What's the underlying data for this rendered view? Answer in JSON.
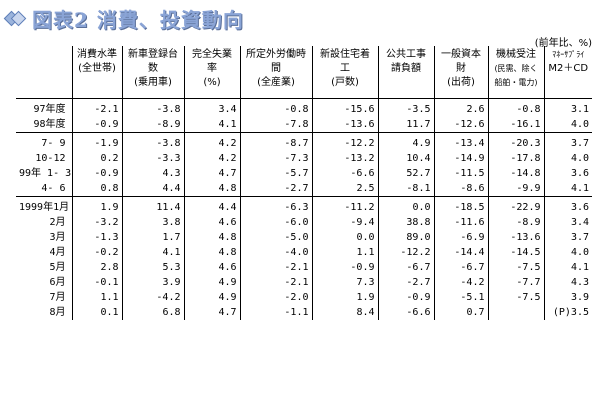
{
  "title": "図表2 消費、投資動向",
  "unit_note": "(前年比、%)",
  "columns": [
    {
      "name": "消費水準",
      "sub": "(全世帯)"
    },
    {
      "name": "新車登録台数",
      "sub": "(乗用車)"
    },
    {
      "name": "完全失業率",
      "sub": "(%)"
    },
    {
      "name": "所定外労働時間",
      "sub": "(全産業)"
    },
    {
      "name": "新設住宅着工",
      "sub": "(戸数)"
    },
    {
      "name": "公共工事",
      "sub": "請負額"
    },
    {
      "name": "一般資本財",
      "sub": "(出荷)"
    },
    {
      "name": "機械受注",
      "sub": "(民需、除く",
      "sub2": "船舶・電力)"
    },
    {
      "name": "ﾏﾈｰｻﾌﾟﾗｲ",
      "sub": "M2＋CD"
    }
  ],
  "group_annual": [
    {
      "label": "97年度",
      "values": [
        "-2.1",
        "-3.8",
        "3.4",
        "-0.8",
        "-15.6",
        "-3.5",
        "2.6",
        "-0.8",
        "3.1"
      ]
    },
    {
      "label": "98年度",
      "values": [
        "-0.9",
        "-8.9",
        "4.1",
        "-7.8",
        "-13.6",
        "11.7",
        "-12.6",
        "-16.1",
        "4.0"
      ]
    }
  ],
  "group_quarterly": [
    {
      "label": "7- 9",
      "values": [
        "-1.9",
        "-3.8",
        "4.2",
        "-8.7",
        "-12.2",
        "4.9",
        "-13.4",
        "-20.3",
        "3.7"
      ]
    },
    {
      "label": "10-12",
      "values": [
        "0.2",
        "-3.3",
        "4.2",
        "-7.3",
        "-13.2",
        "10.4",
        "-14.9",
        "-17.8",
        "4.0"
      ]
    },
    {
      "label": "99年 1- 3",
      "values": [
        "-0.9",
        "4.3",
        "4.7",
        "-5.7",
        "-6.6",
        "52.7",
        "-11.5",
        "-14.8",
        "3.6"
      ]
    },
    {
      "label": "4- 6",
      "values": [
        "0.8",
        "4.4",
        "4.8",
        "-2.7",
        "2.5",
        "-8.1",
        "-8.6",
        "-9.9",
        "4.1"
      ]
    }
  ],
  "group_monthly": [
    {
      "label": "1999年1月",
      "values": [
        "1.9",
        "11.4",
        "4.4",
        "-6.3",
        "-11.2",
        "0.0",
        "-18.5",
        "-22.9",
        "3.6"
      ]
    },
    {
      "label": "2月",
      "values": [
        "-3.2",
        "3.8",
        "4.6",
        "-6.0",
        "-9.4",
        "38.8",
        "-11.6",
        "-8.9",
        "3.4"
      ]
    },
    {
      "label": "3月",
      "values": [
        "-1.3",
        "1.7",
        "4.8",
        "-5.0",
        "0.0",
        "89.0",
        "-6.9",
        "-13.6",
        "3.7"
      ]
    },
    {
      "label": "4月",
      "values": [
        "-0.2",
        "4.1",
        "4.8",
        "-4.0",
        "1.1",
        "-12.2",
        "-14.4",
        "-14.5",
        "4.0"
      ]
    },
    {
      "label": "5月",
      "values": [
        "2.8",
        "5.3",
        "4.6",
        "-2.1",
        "-0.9",
        "-6.7",
        "-6.7",
        "-7.5",
        "4.1"
      ]
    },
    {
      "label": "6月",
      "values": [
        "-0.1",
        "3.9",
        "4.9",
        "-2.1",
        "7.3",
        "-2.7",
        "-4.2",
        "-7.7",
        "4.3"
      ]
    },
    {
      "label": "7月",
      "values": [
        "1.1",
        "-4.2",
        "4.9",
        "-2.0",
        "1.9",
        "-0.9",
        "-5.1",
        "-7.5",
        "3.9"
      ]
    },
    {
      "label": "8月",
      "values": [
        "0.1",
        "6.8",
        "4.7",
        "-1.1",
        "8.4",
        "-6.6",
        "0.7",
        "",
        "(P)3.5"
      ]
    }
  ]
}
